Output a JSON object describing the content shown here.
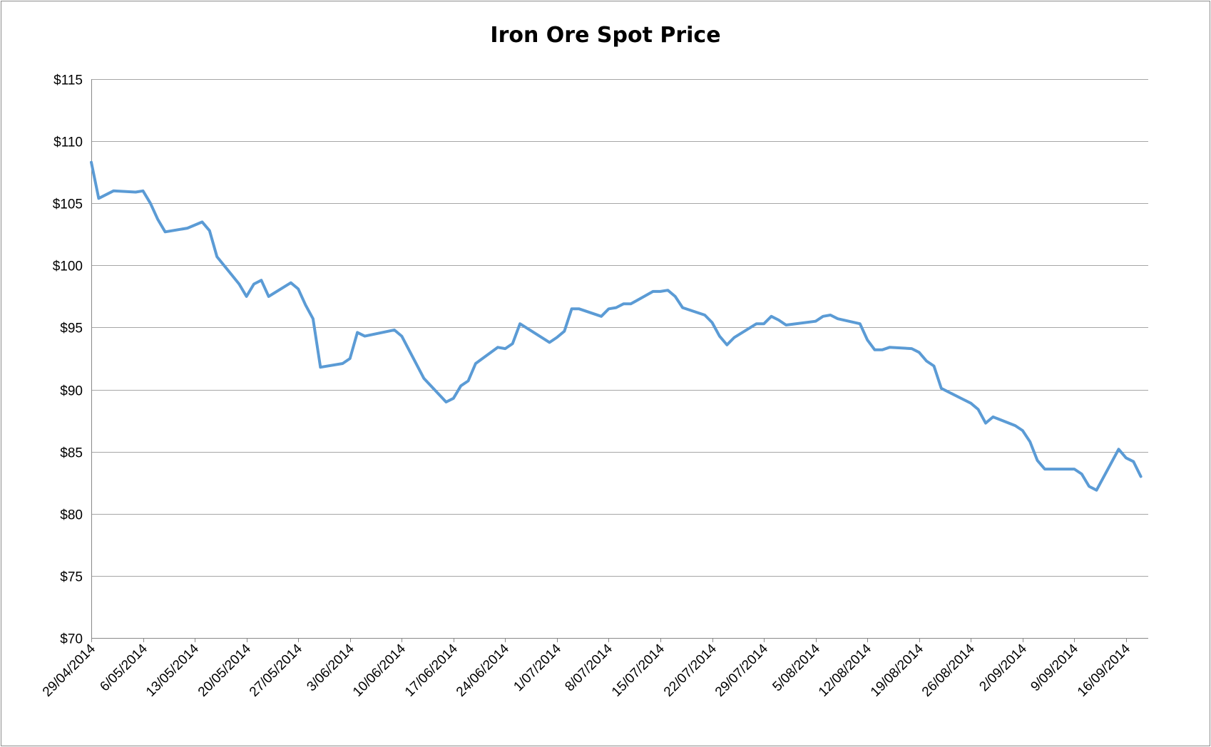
{
  "chart_data": {
    "type": "line",
    "title": "Iron Ore Spot Price",
    "xlabel": "",
    "ylabel": "",
    "ylim": [
      70,
      115
    ],
    "y_ticks": [
      115,
      110,
      105,
      100,
      95,
      90,
      85,
      80,
      75,
      70
    ],
    "y_tick_labels": [
      "$115",
      "$110",
      "$105",
      "$100",
      "$95",
      "$90",
      "$85",
      "$80",
      "$75",
      "$70"
    ],
    "x_range": [
      "2014-04-29",
      "2014-09-19"
    ],
    "x_ticks": [
      "2014-04-29",
      "2014-05-06",
      "2014-05-13",
      "2014-05-20",
      "2014-05-27",
      "2014-06-03",
      "2014-06-10",
      "2014-06-17",
      "2014-06-24",
      "2014-07-01",
      "2014-07-08",
      "2014-07-15",
      "2014-07-22",
      "2014-07-29",
      "2014-08-05",
      "2014-08-12",
      "2014-08-19",
      "2014-08-26",
      "2014-09-02",
      "2014-09-09",
      "2014-09-16"
    ],
    "x_tick_labels": [
      "29/04/2014",
      "6/05/2014",
      "13/05/2014",
      "20/05/2014",
      "27/05/2014",
      "3/06/2014",
      "10/06/2014",
      "17/06/2014",
      "24/06/2014",
      "1/07/2014",
      "8/07/2014",
      "15/07/2014",
      "22/07/2014",
      "29/07/2014",
      "5/08/2014",
      "12/08/2014",
      "19/08/2014",
      "26/08/2014",
      "2/09/2014",
      "9/09/2014",
      "16/09/2014"
    ],
    "grid": "horizontal",
    "legend": "none",
    "line_color": "#5b9bd5",
    "series": [
      {
        "x": [
          "2014-04-29",
          "2014-04-30",
          "2014-05-02",
          "2014-05-05",
          "2014-05-06",
          "2014-05-07",
          "2014-05-08",
          "2014-05-09",
          "2014-05-12",
          "2014-05-14",
          "2014-05-15",
          "2014-05-16",
          "2014-05-19",
          "2014-05-20",
          "2014-05-21",
          "2014-05-22",
          "2014-05-23",
          "2014-05-26",
          "2014-05-27",
          "2014-05-28",
          "2014-05-29",
          "2014-05-30",
          "2014-06-02",
          "2014-06-03",
          "2014-06-04",
          "2014-06-05",
          "2014-06-09",
          "2014-06-10",
          "2014-06-13",
          "2014-06-16",
          "2014-06-17",
          "2014-06-18",
          "2014-06-19",
          "2014-06-20",
          "2014-06-23",
          "2014-06-24",
          "2014-06-25",
          "2014-06-26",
          "2014-06-30",
          "2014-07-01",
          "2014-07-02",
          "2014-07-03",
          "2014-07-04",
          "2014-07-07",
          "2014-07-08",
          "2014-07-09",
          "2014-07-10",
          "2014-07-11",
          "2014-07-14",
          "2014-07-15",
          "2014-07-16",
          "2014-07-17",
          "2014-07-18",
          "2014-07-21",
          "2014-07-22",
          "2014-07-23",
          "2014-07-24",
          "2014-07-25",
          "2014-07-28",
          "2014-07-29",
          "2014-07-30",
          "2014-07-31",
          "2014-08-01",
          "2014-08-05",
          "2014-08-06",
          "2014-08-07",
          "2014-08-08",
          "2014-08-11",
          "2014-08-12",
          "2014-08-13",
          "2014-08-14",
          "2014-08-15",
          "2014-08-18",
          "2014-08-19",
          "2014-08-20",
          "2014-08-21",
          "2014-08-22",
          "2014-08-25",
          "2014-08-26",
          "2014-08-27",
          "2014-08-28",
          "2014-08-29",
          "2014-09-01",
          "2014-09-02",
          "2014-09-03",
          "2014-09-04",
          "2014-09-05",
          "2014-09-08",
          "2014-09-09",
          "2014-09-10",
          "2014-09-11",
          "2014-09-12",
          "2014-09-15",
          "2014-09-16",
          "2014-09-17",
          "2014-09-18"
        ],
        "values": [
          108.3,
          105.4,
          106.0,
          105.9,
          106.0,
          105.0,
          103.7,
          102.7,
          103.0,
          103.5,
          102.8,
          100.7,
          98.5,
          97.5,
          98.5,
          98.8,
          97.5,
          98.6,
          98.1,
          96.8,
          95.7,
          91.8,
          92.1,
          92.5,
          94.6,
          94.3,
          94.8,
          94.3,
          90.9,
          89.0,
          89.3,
          90.3,
          90.7,
          92.1,
          93.4,
          93.3,
          93.7,
          95.3,
          93.8,
          94.2,
          94.7,
          96.5,
          96.5,
          95.9,
          96.5,
          96.6,
          96.9,
          96.9,
          97.9,
          97.9,
          98.0,
          97.5,
          96.6,
          96.0,
          95.4,
          94.3,
          93.6,
          94.2,
          95.3,
          95.3,
          95.9,
          95.6,
          95.2,
          95.5,
          95.9,
          96.0,
          95.7,
          95.3,
          94.0,
          93.2,
          93.2,
          93.4,
          93.3,
          93.0,
          92.3,
          91.9,
          90.1,
          89.2,
          88.9,
          88.4,
          87.3,
          87.8,
          87.1,
          86.7,
          85.8,
          84.3,
          83.6,
          83.6,
          83.6,
          83.2,
          82.2,
          81.9,
          85.2,
          84.5,
          84.2,
          83.0
        ]
      }
    ]
  }
}
